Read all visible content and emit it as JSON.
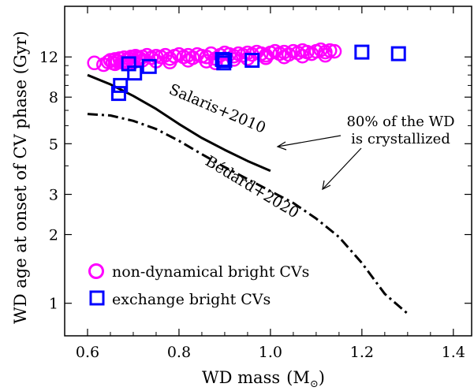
{
  "chart_data": {
    "type": "scatter",
    "xlabel": "WD mass",
    "xunit": "(M",
    "xunit_sub": "⊙",
    "xunit_close": ")",
    "ylabel": "WD age at onset of CV phase (Gyr)",
    "xscale": "linear",
    "yscale": "log",
    "xlim": [
      0.55,
      1.44
    ],
    "ylim": [
      0.72,
      20
    ],
    "xticks": [
      0.6,
      0.8,
      1.0,
      1.2,
      1.4
    ],
    "xtick_labels": [
      "0.6",
      "0.8",
      "1.0",
      "1.2",
      "1.4"
    ],
    "yticks": [
      1,
      2,
      3,
      5,
      8,
      12
    ],
    "ytick_labels": [
      "1",
      "2",
      "3",
      "5",
      "8",
      "12"
    ],
    "legend_position": "lower-left",
    "series": [
      {
        "name": "non-dynamical bright CVs",
        "marker": "circle",
        "color": "#ff00ff",
        "x": [
          0.615,
          0.635,
          0.645,
          0.65,
          0.655,
          0.66,
          0.665,
          0.67,
          0.675,
          0.68,
          0.685,
          0.69,
          0.695,
          0.7,
          0.705,
          0.71,
          0.715,
          0.72,
          0.73,
          0.74,
          0.75,
          0.76,
          0.77,
          0.78,
          0.79,
          0.8,
          0.81,
          0.82,
          0.83,
          0.84,
          0.85,
          0.86,
          0.87,
          0.88,
          0.89,
          0.9,
          0.91,
          0.92,
          0.93,
          0.94,
          0.95,
          0.96,
          0.97,
          0.98,
          0.99,
          1.0,
          1.01,
          1.02,
          1.03,
          1.04,
          1.05,
          1.06,
          1.07,
          1.08,
          1.09,
          1.1,
          1.11,
          1.12,
          1.13,
          1.14,
          0.66,
          0.68,
          0.7,
          0.72,
          0.75,
          0.78,
          0.82,
          0.86,
          0.88,
          0.92,
          0.95,
          0.99,
          1.03,
          1.07,
          1.12
        ],
        "y": [
          11.3,
          11.1,
          11.4,
          11.6,
          11.3,
          11.7,
          11.5,
          11.8,
          11.4,
          11.9,
          11.6,
          11.8,
          12.0,
          11.7,
          12.1,
          11.9,
          11.8,
          12.0,
          12.2,
          11.9,
          12.1,
          12.0,
          12.2,
          11.8,
          12.1,
          12.3,
          12.0,
          12.2,
          11.9,
          12.3,
          12.1,
          12.0,
          12.4,
          11.8,
          12.2,
          12.5,
          12.3,
          12.1,
          12.4,
          12.2,
          12.5,
          12.3,
          12.6,
          12.4,
          12.2,
          12.5,
          12.7,
          12.4,
          12.6,
          12.3,
          12.7,
          12.5,
          12.8,
          12.6,
          12.4,
          12.7,
          12.9,
          12.6,
          12.8,
          12.7,
          11.2,
          11.3,
          11.4,
          11.6,
          11.5,
          11.4,
          11.6,
          11.5,
          11.3,
          11.7,
          11.8,
          11.9,
          12.0,
          12.1,
          12.2
        ]
      },
      {
        "name": "exchange bright CVs",
        "marker": "square",
        "color": "#0000ff",
        "x": [
          0.668,
          0.672,
          0.69,
          0.703,
          0.735,
          0.895,
          0.898,
          0.9,
          0.96,
          1.2,
          1.28
        ],
        "y": [
          8.3,
          9.0,
          11.2,
          10.2,
          10.9,
          11.7,
          11.3,
          11.6,
          11.6,
          12.6,
          12.4
        ]
      }
    ],
    "curves": [
      {
        "name": "Salaris+2010",
        "style": "solid",
        "x": [
          0.6,
          0.65,
          0.7,
          0.75,
          0.8,
          0.85,
          0.9,
          0.95,
          1.0
        ],
        "y": [
          10.0,
          9.1,
          8.1,
          7.1,
          6.1,
          5.3,
          4.7,
          4.2,
          3.8
        ]
      },
      {
        "name": "Bédard+2020",
        "style": "dashdot",
        "x": [
          0.6,
          0.65,
          0.7,
          0.75,
          0.8,
          0.85,
          0.9,
          0.95,
          1.0,
          1.05,
          1.1,
          1.15,
          1.2,
          1.25,
          1.3
        ],
        "y": [
          6.75,
          6.65,
          6.3,
          5.8,
          5.15,
          4.5,
          3.95,
          3.5,
          3.1,
          2.75,
          2.35,
          1.95,
          1.5,
          1.1,
          0.9
        ]
      }
    ],
    "annotation": {
      "lines": [
        "80% of the WD",
        "is crystallized"
      ]
    }
  }
}
